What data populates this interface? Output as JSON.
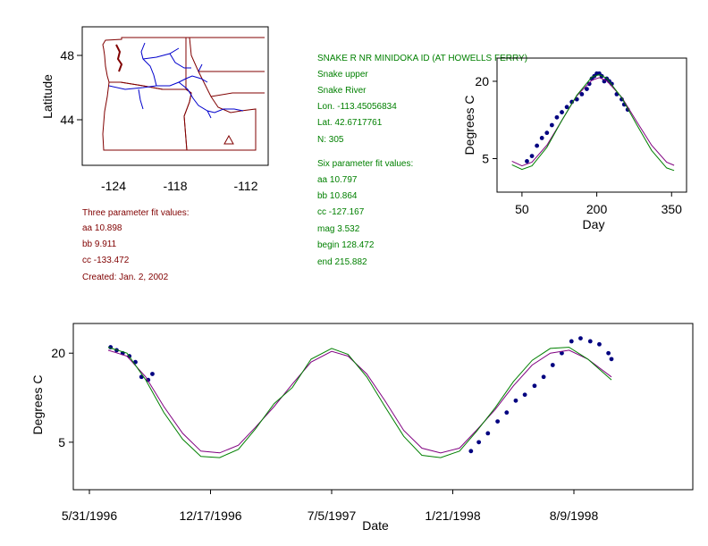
{
  "map": {
    "ylabel": "Latitude",
    "yticks": [
      "48",
      "44"
    ],
    "xticks": [
      "-124",
      "-118",
      "-112"
    ],
    "state_color": "#800000",
    "river_color": "#0000cc"
  },
  "three_param": {
    "heading": "Three parameter fit values:",
    "aa": "aa 10.898",
    "bb": "bb 9.911",
    "cc": "cc -133.472",
    "created": "Created:   Jan. 2, 2002"
  },
  "station": {
    "name": "SNAKE R NR MINIDOKA ID (AT HOWELLS FERRY)",
    "reach": "Snake upper",
    "river": "Snake River",
    "lon": "Lon. -113.45056834",
    "lat": "Lat. 42.6717761",
    "n": "N: 305"
  },
  "six_param": {
    "heading": "Six parameter fit values:",
    "aa": "aa 10.797",
    "bb": "bb 10.864",
    "cc": "cc -127.167",
    "mag": "mag 3.532",
    "begin": "begin 128.472",
    "end": "end 215.882"
  },
  "colors": {
    "observed": "#000080",
    "three_param_fit": "#800080",
    "six_param_fit": "#008000",
    "text_red": "#800000",
    "text_green": "#008000"
  },
  "chart_data": [
    {
      "type": "scatter",
      "xlabel": "Day",
      "ylabel": "Degrees C",
      "xticks": [
        50,
        200,
        350
      ],
      "yticks": [
        5,
        20
      ],
      "xlim": [
        0,
        380
      ],
      "ylim": [
        -1.5,
        24.5
      ],
      "series": [
        {
          "points": [
            [
              60,
              4.5
            ],
            [
              70,
              5.5
            ],
            [
              80,
              7.5
            ],
            [
              90,
              9
            ],
            [
              100,
              10
            ],
            [
              110,
              11.5
            ],
            [
              120,
              13
            ],
            [
              130,
              14
            ],
            [
              140,
              15
            ],
            [
              150,
              16
            ],
            [
              160,
              16.5
            ],
            [
              170,
              17.5
            ],
            [
              180,
              18.5
            ],
            [
              185,
              19.5
            ],
            [
              190,
              20.5
            ],
            [
              195,
              21
            ],
            [
              200,
              21.5
            ],
            [
              205,
              21.5
            ],
            [
              210,
              21
            ],
            [
              215,
              20
            ],
            [
              220,
              20.5
            ],
            [
              225,
              20
            ],
            [
              230,
              19.5
            ],
            [
              240,
              17.5
            ],
            [
              250,
              16.5
            ],
            [
              255,
              15.5
            ],
            [
              262,
              14.5
            ]
          ]
        },
        {
          "points": [
            [
              30,
              4.5
            ],
            [
              50,
              3.6
            ],
            [
              70,
              4.3
            ],
            [
              100,
              7.6
            ],
            [
              130,
              12.4
            ],
            [
              160,
              17.2
            ],
            [
              190,
              20.2
            ],
            [
              205,
              20.7
            ],
            [
              220,
              20.1
            ],
            [
              250,
              16.9
            ],
            [
              280,
              12.2
            ],
            [
              310,
              7.6
            ],
            [
              340,
              4.3
            ],
            [
              355,
              3.7
            ]
          ]
        },
        {
          "points": [
            [
              30,
              3.8
            ],
            [
              50,
              2.9
            ],
            [
              70,
              3.6
            ],
            [
              100,
              7.2
            ],
            [
              130,
              12.4
            ],
            [
              160,
              17.3
            ],
            [
              190,
              20.8
            ],
            [
              205,
              21.3
            ],
            [
              220,
              20.6
            ],
            [
              250,
              16.8
            ],
            [
              280,
              11.6
            ],
            [
              310,
              6.6
            ],
            [
              340,
              3.2
            ],
            [
              355,
              2.7
            ]
          ]
        }
      ]
    },
    {
      "type": "scatter",
      "xlabel": "Date",
      "ylabel": "Degrees C",
      "xticks": [
        "5/31/1996",
        "12/17/1996",
        "7/5/1997",
        "1/21/1998",
        "8/9/1998"
      ],
      "yticks": [
        5,
        20
      ],
      "ylim": [
        -3,
        25
      ],
      "series": [
        {
          "points": [
            [
              "1996-07-05",
              21
            ],
            [
              "1996-07-15",
              20.5
            ],
            [
              "1996-07-25",
              20
            ],
            [
              "1996-08-05",
              19.5
            ],
            [
              "1996-08-15",
              18.5
            ],
            [
              "1996-08-25",
              16
            ],
            [
              "1996-09-05",
              15.5
            ],
            [
              "1996-09-12",
              16.5
            ],
            [
              "1998-02-20",
              3.5
            ],
            [
              "1998-03-05",
              5
            ],
            [
              "1998-03-20",
              6.5
            ],
            [
              "1998-04-05",
              8.5
            ],
            [
              "1998-04-20",
              10
            ],
            [
              "1998-05-05",
              12
            ],
            [
              "1998-05-20",
              13
            ],
            [
              "1998-06-05",
              14.5
            ],
            [
              "1998-06-20",
              16
            ],
            [
              "1998-07-05",
              18
            ],
            [
              "1998-07-20",
              20
            ],
            [
              "1998-08-05",
              22
            ],
            [
              "1998-08-20",
              22.5
            ],
            [
              "1998-09-05",
              22
            ],
            [
              "1998-09-20",
              21.5
            ],
            [
              "1998-10-05",
              20
            ],
            [
              "1998-10-10",
              19
            ]
          ]
        },
        {
          "points": [
            [
              "1996-07-01",
              20.5
            ],
            [
              "1996-08-01",
              19.5
            ],
            [
              "1996-09-01",
              16
            ],
            [
              "1996-10-01",
              11
            ],
            [
              "1996-11-01",
              6.5
            ],
            [
              "1996-12-01",
              3.5
            ],
            [
              "1997-01-01",
              3.2
            ],
            [
              "1997-02-01",
              4.5
            ],
            [
              "1997-03-01",
              7.5
            ],
            [
              "1997-04-01",
              11
            ],
            [
              "1997-05-01",
              14.8
            ],
            [
              "1997-06-01",
              18.5
            ],
            [
              "1997-07-05",
              20.3
            ],
            [
              "1997-08-01",
              19.5
            ],
            [
              "1997-09-01",
              16.5
            ],
            [
              "1997-10-01",
              12
            ],
            [
              "1997-11-01",
              7
            ],
            [
              "1997-12-01",
              4
            ],
            [
              "1998-01-01",
              3.2
            ],
            [
              "1998-02-01",
              4
            ],
            [
              "1998-03-01",
              7
            ],
            [
              "1998-04-01",
              10.5
            ],
            [
              "1998-05-01",
              14.5
            ],
            [
              "1998-06-01",
              18
            ],
            [
              "1998-07-01",
              20
            ],
            [
              "1998-08-01",
              20.5
            ],
            [
              "1998-09-01",
              19
            ],
            [
              "1998-10-10",
              16
            ]
          ]
        },
        {
          "points": [
            [
              "1996-07-01",
              21
            ],
            [
              "1996-08-01",
              20
            ],
            [
              "1996-09-01",
              15.5
            ],
            [
              "1996-10-01",
              10
            ],
            [
              "1996-11-01",
              5.5
            ],
            [
              "1996-12-01",
              2.6
            ],
            [
              "1997-01-01",
              2.4
            ],
            [
              "1997-02-01",
              3.8
            ],
            [
              "1997-03-01",
              7.2
            ],
            [
              "1997-04-01",
              11.5
            ],
            [
              "1997-05-01",
              14.2
            ],
            [
              "1997-06-01",
              19
            ],
            [
              "1997-07-05",
              20.8
            ],
            [
              "1997-08-01",
              19.8
            ],
            [
              "1997-09-01",
              16
            ],
            [
              "1997-10-01",
              11
            ],
            [
              "1997-11-01",
              6
            ],
            [
              "1997-12-01",
              2.8
            ],
            [
              "1998-01-01",
              2.4
            ],
            [
              "1998-02-01",
              3.5
            ],
            [
              "1998-03-01",
              6.8
            ],
            [
              "1998-04-01",
              10.8
            ],
            [
              "1998-05-01",
              15.2
            ],
            [
              "1998-06-01",
              18.8
            ],
            [
              "1998-07-01",
              20.8
            ],
            [
              "1998-08-01",
              21
            ],
            [
              "1998-09-01",
              19
            ],
            [
              "1998-10-10",
              15.5
            ]
          ]
        }
      ]
    }
  ]
}
